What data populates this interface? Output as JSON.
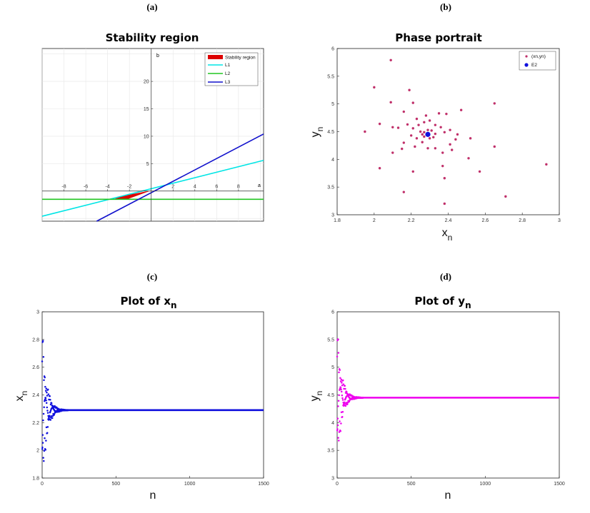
{
  "figure": {
    "panel_labels": [
      "(a)",
      "(b)",
      "(c)",
      "(d)"
    ]
  },
  "chart_data": [
    {
      "panel": "(a)",
      "type": "line",
      "title": "Stability region",
      "xlabel": "a",
      "ylabel": "b",
      "xlim": [
        -10,
        10.3
      ],
      "ylim": [
        -5.5,
        26
      ],
      "xticks": [
        -8,
        -6,
        -4,
        -2,
        2,
        4,
        6,
        8
      ],
      "xtick_labels": [
        "-8",
        "-6",
        "-4",
        "-2",
        "2",
        "4",
        "6",
        "8"
      ],
      "yticks": [
        5,
        10,
        15,
        20
      ],
      "ytick_labels": [
        "5",
        "10",
        "15",
        "20"
      ],
      "grid": true,
      "legend": {
        "location": "top-right",
        "labels": [
          "Stability region",
          "L1",
          "L2",
          "L3"
        ]
      },
      "series": [
        {
          "name": "L1",
          "color": "#00e5e5",
          "points": [
            [
              -10,
              -4.6
            ],
            [
              10.3,
              5.6
            ]
          ]
        },
        {
          "name": "L2",
          "color": "#22c522",
          "points": [
            [
              -10,
              -1.5
            ],
            [
              10.3,
              -1.5
            ]
          ]
        },
        {
          "name": "L3",
          "color": "#1010cc",
          "points": [
            [
              -5,
              -5.5
            ],
            [
              10.3,
              10.4
            ]
          ]
        }
      ],
      "region": {
        "name": "Stability region",
        "color": "#dd0000",
        "vertices": [
          [
            -3.5,
            -1.5
          ],
          [
            -2.2,
            -1.5
          ],
          [
            0,
            0.1
          ],
          [
            -2.4,
            -0.8
          ]
        ]
      }
    },
    {
      "panel": "(b)",
      "type": "scatter",
      "title": "Phase portrait",
      "xlabel": "x",
      "xlabel_sub": "n",
      "ylabel": "y",
      "ylabel_sub": "n",
      "xlim": [
        1.8,
        3
      ],
      "ylim": [
        3,
        6
      ],
      "xticks": [
        1.8,
        2,
        2.2,
        2.4,
        2.6,
        2.8,
        3
      ],
      "xtick_labels": [
        "1.8",
        "2",
        "2.2",
        "2.4",
        "2.6",
        "2.8",
        "3"
      ],
      "yticks": [
        3,
        3.5,
        4,
        4.5,
        5,
        5.5,
        6
      ],
      "ytick_labels": [
        "3",
        "3.5",
        "4",
        "4.5",
        "5",
        "5.5",
        "6"
      ],
      "legend": {
        "location": "top-right",
        "labels": [
          "(xn,yn)",
          "E2"
        ]
      },
      "series": [
        {
          "name": "(xn,yn)",
          "color": "#c0306a",
          "points": [
            [
              2.09,
              5.79
            ],
            [
              2.0,
              5.3
            ],
            [
              2.19,
              5.25
            ],
            [
              2.09,
              5.03
            ],
            [
              2.21,
              5.02
            ],
            [
              2.65,
              5.01
            ],
            [
              2.16,
              4.86
            ],
            [
              2.03,
              4.64
            ],
            [
              1.95,
              4.5
            ],
            [
              2.1,
              4.58
            ],
            [
              2.47,
              4.89
            ],
            [
              2.39,
              4.82
            ],
            [
              2.35,
              4.83
            ],
            [
              2.28,
              4.79
            ],
            [
              2.23,
              4.73
            ],
            [
              2.13,
              4.57
            ],
            [
              2.18,
              4.63
            ],
            [
              2.21,
              4.56
            ],
            [
              2.24,
              4.62
            ],
            [
              2.27,
              4.67
            ],
            [
              2.3,
              4.7
            ],
            [
              2.33,
              4.62
            ],
            [
              2.36,
              4.58
            ],
            [
              2.38,
              4.49
            ],
            [
              2.41,
              4.53
            ],
            [
              2.45,
              4.45
            ],
            [
              2.52,
              4.38
            ],
            [
              2.44,
              4.36
            ],
            [
              2.41,
              4.27
            ],
            [
              2.42,
              4.17
            ],
            [
              2.37,
              4.12
            ],
            [
              2.33,
              4.2
            ],
            [
              2.29,
              4.2
            ],
            [
              2.26,
              4.31
            ],
            [
              2.23,
              4.38
            ],
            [
              2.2,
              4.43
            ],
            [
              2.16,
              4.3
            ],
            [
              2.1,
              4.12
            ],
            [
              2.15,
              4.19
            ],
            [
              2.22,
              4.23
            ],
            [
              2.03,
              3.84
            ],
            [
              2.21,
              3.78
            ],
            [
              2.37,
              3.88
            ],
            [
              2.38,
              3.66
            ],
            [
              2.57,
              3.78
            ],
            [
              2.51,
              4.02
            ],
            [
              2.65,
              4.23
            ],
            [
              2.16,
              3.41
            ],
            [
              2.71,
              3.33
            ],
            [
              2.38,
              3.2
            ],
            [
              2.93,
              3.91
            ],
            [
              2.27,
              4.49
            ],
            [
              2.31,
              4.52
            ],
            [
              2.27,
              4.41
            ],
            [
              2.32,
              4.4
            ],
            [
              2.29,
              4.53
            ],
            [
              2.26,
              4.45
            ],
            [
              2.33,
              4.46
            ],
            [
              2.3,
              4.38
            ],
            [
              2.25,
              4.5
            ]
          ]
        },
        {
          "name": "E2",
          "color": "#1010dd",
          "points": [
            [
              2.29,
              4.45
            ]
          ]
        }
      ]
    },
    {
      "panel": "(c)",
      "type": "scatter",
      "title": "Plot of x",
      "title_sub": "n",
      "xlabel": "n",
      "ylabel": "x",
      "ylabel_sub": "n",
      "color": "#1010dd",
      "xlim": [
        0,
        1500
      ],
      "ylim": [
        1.8,
        3
      ],
      "xticks": [
        0,
        500,
        1000,
        1500
      ],
      "xtick_labels": [
        "0",
        "500",
        "1000",
        "1500"
      ],
      "yticks": [
        1.8,
        2,
        2.2,
        2.4,
        2.6,
        2.8,
        3
      ],
      "ytick_labels": [
        "1.8",
        "2",
        "2.2",
        "2.4",
        "2.6",
        "2.8",
        "3"
      ],
      "equilibrium": 2.29,
      "initial_amplitude": 0.64,
      "decay_per_step": 0.035,
      "samples": 1500
    },
    {
      "panel": "(d)",
      "type": "scatter",
      "title": "Plot of y",
      "title_sub": "n",
      "xlabel": "n",
      "ylabel": "y",
      "ylabel_sub": "n",
      "color": "#ee00ee",
      "xlim": [
        0,
        1500
      ],
      "ylim": [
        3,
        6
      ],
      "xticks": [
        0,
        500,
        1000,
        1500
      ],
      "xtick_labels": [
        "0",
        "500",
        "1000",
        "1500"
      ],
      "yticks": [
        3,
        3.5,
        4,
        4.5,
        5,
        5.5,
        6
      ],
      "ytick_labels": [
        "3",
        "3.5",
        "4",
        "4.5",
        "5",
        "5.5",
        "6"
      ],
      "equilibrium": 4.45,
      "initial_amplitude": 1.35,
      "decay_per_step": 0.035,
      "samples": 1500
    }
  ]
}
